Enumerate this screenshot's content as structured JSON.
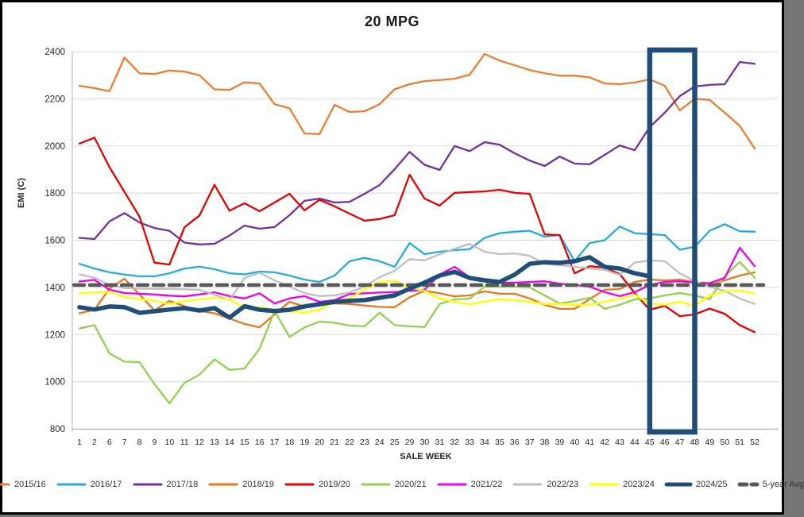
{
  "chart_data": {
    "type": "line",
    "title": "20 MPG",
    "xlabel": "SALE WEEK",
    "ylabel": "EMI (C)",
    "ylim": [
      800,
      2400
    ],
    "yticks": [
      800,
      1000,
      1200,
      1400,
      1600,
      1800,
      2000,
      2200,
      2400
    ],
    "grid": "horizontal-only",
    "legend_position": "bottom",
    "background": "#ffffff",
    "gridline_color": "#d9d9d9",
    "axis_line_color": "#bfbfbf",
    "tick_text_color": "#262626",
    "highlight_box": {
      "weeks": [
        46,
        47
      ],
      "color": "#1F4E79",
      "border_px": 6.5
    },
    "categories": [
      1,
      2,
      6,
      7,
      8,
      9,
      10,
      11,
      12,
      13,
      14,
      15,
      16,
      17,
      18,
      19,
      20,
      21,
      22,
      23,
      24,
      25,
      29,
      30,
      31,
      32,
      33,
      34,
      35,
      36,
      37,
      38,
      39,
      40,
      41,
      42,
      43,
      44,
      45,
      46,
      47,
      48,
      49,
      50,
      51,
      52
    ],
    "series": [
      {
        "name": "2015/16",
        "color": "#ED7D31",
        "width": 2.3,
        "values": [
          2255,
          2245,
          2232,
          2375,
          2308,
          2305,
          2320,
          2315,
          2300,
          2240,
          2238,
          2270,
          2265,
          2177,
          2160,
          2053,
          2050,
          2174,
          2144,
          2147,
          2177,
          2240,
          2262,
          2275,
          2279,
          2285,
          2302,
          2390,
          2362,
          2342,
          2322,
          2308,
          2298,
          2298,
          2291,
          2265,
          2262,
          2269,
          2282,
          2255,
          2150,
          2200,
          2195,
          2141,
          2085,
          1989
        ]
      },
      {
        "name": "2016/17",
        "color": "#27AAE1",
        "width": 2.3,
        "values": [
          1500,
          1480,
          1464,
          1454,
          1447,
          1447,
          1460,
          1480,
          1488,
          1477,
          1460,
          1455,
          1467,
          1464,
          1450,
          1433,
          1423,
          1450,
          1511,
          1525,
          1511,
          1487,
          1588,
          1541,
          1551,
          1558,
          1562,
          1610,
          1630,
          1636,
          1640,
          1615,
          1622,
          1511,
          1588,
          1600,
          1658,
          1630,
          1626,
          1622,
          1560,
          1572,
          1640,
          1668,
          1638,
          1636
        ]
      },
      {
        "name": "2017/18",
        "color": "#7030A0",
        "width": 2.3,
        "values": [
          1610,
          1605,
          1680,
          1715,
          1675,
          1652,
          1640,
          1590,
          1582,
          1585,
          1620,
          1662,
          1649,
          1656,
          1706,
          1767,
          1777,
          1760,
          1763,
          1797,
          1834,
          1901,
          1975,
          1920,
          1898,
          2000,
          1978,
          2016,
          2005,
          1969,
          1938,
          1915,
          1955,
          1925,
          1922,
          1962,
          2002,
          1982,
          2080,
          2141,
          2211,
          2252,
          2259,
          2262,
          2356,
          2348
        ]
      },
      {
        "name": "2018/19",
        "color": "#E8761B",
        "width": 2.3,
        "values": [
          1290,
          1305,
          1395,
          1437,
          1370,
          1302,
          1343,
          1320,
          1300,
          1290,
          1268,
          1245,
          1230,
          1285,
          1339,
          1319,
          1326,
          1332,
          1330,
          1323,
          1317,
          1316,
          1358,
          1385,
          1375,
          1362,
          1366,
          1383,
          1373,
          1373,
          1353,
          1326,
          1309,
          1309,
          1350,
          1390,
          1393,
          1423,
          1433,
          1430,
          1433,
          1423,
          1408,
          1430,
          1450,
          1464
        ]
      },
      {
        "name": "2019/20",
        "color": "#E60000",
        "width": 2.3,
        "values": [
          2010,
          2035,
          1910,
          1805,
          1700,
          1505,
          1497,
          1655,
          1705,
          1835,
          1725,
          1757,
          1723,
          1760,
          1797,
          1727,
          1771,
          1744,
          1713,
          1683,
          1690,
          1706,
          1878,
          1777,
          1747,
          1801,
          1804,
          1807,
          1814,
          1801,
          1797,
          1625,
          1622,
          1460,
          1490,
          1484,
          1457,
          1376,
          1305,
          1322,
          1278,
          1285,
          1310,
          1288,
          1240,
          1210
        ]
      },
      {
        "name": "2020/21",
        "color": "#92D050",
        "width": 2.3,
        "values": [
          1225,
          1240,
          1120,
          1085,
          1083,
          990,
          908,
          995,
          1030,
          1095,
          1050,
          1056,
          1140,
          1300,
          1190,
          1230,
          1255,
          1250,
          1238,
          1235,
          1293,
          1240,
          1235,
          1232,
          1330,
          1349,
          1352,
          1403,
          1403,
          1403,
          1400,
          1366,
          1332,
          1342,
          1356,
          1309,
          1326,
          1349,
          1353,
          1366,
          1376,
          1366,
          1350,
          1447,
          1508,
          1440
        ]
      },
      {
        "name": "2021/22",
        "color": "#EE00EE",
        "width": 2.3,
        "values": [
          1425,
          1432,
          1390,
          1376,
          1373,
          1370,
          1365,
          1362,
          1370,
          1379,
          1363,
          1353,
          1375,
          1332,
          1353,
          1363,
          1339,
          1346,
          1372,
          1375,
          1378,
          1380,
          1385,
          1390,
          1454,
          1487,
          1443,
          1433,
          1420,
          1420,
          1423,
          1426,
          1416,
          1410,
          1403,
          1380,
          1363,
          1380,
          1410,
          1423,
          1426,
          1420,
          1418,
          1440,
          1568,
          1490
        ]
      },
      {
        "name": "2022/23",
        "color": "#BFBFBF",
        "width": 2.3,
        "values": [
          1455,
          1441,
          1410,
          1397,
          1395,
          1394,
          1394,
          1392,
          1390,
          1369,
          1346,
          1440,
          1462,
          1430,
          1403,
          1376,
          1363,
          1366,
          1379,
          1403,
          1443,
          1470,
          1520,
          1515,
          1540,
          1564,
          1585,
          1551,
          1541,
          1544,
          1534,
          1500,
          1494,
          1487,
          1480,
          1474,
          1453,
          1505,
          1514,
          1511,
          1460,
          1427,
          1403,
          1385,
          1353,
          1330
        ]
      },
      {
        "name": "2023/24",
        "color": "#FFFF00",
        "width": 2.3,
        "values": [
          1375,
          1378,
          1380,
          1360,
          1350,
          1343,
          1330,
          1342,
          1349,
          1356,
          1349,
          1312,
          1316,
          1305,
          1298,
          1292,
          1305,
          1340,
          1353,
          1390,
          1423,
          1428,
          1400,
          1385,
          1353,
          1339,
          1328,
          1340,
          1349,
          1346,
          1339,
          1330,
          1330,
          1326,
          1326,
          1340,
          1352,
          1369,
          1332,
          1326,
          1339,
          1322,
          1366,
          1383,
          1387,
          1373
        ]
      },
      {
        "name": "2024/25",
        "color": "#1F4E79",
        "width": 5.5,
        "values": [
          1316,
          1306,
          1319,
          1316,
          1292,
          1299,
          1306,
          1312,
          1302,
          1312,
          1272,
          1320,
          1305,
          1300,
          1305,
          1319,
          1329,
          1339,
          1343,
          1346,
          1356,
          1366,
          1395,
          1420,
          1450,
          1466,
          1440,
          1430,
          1423,
          1454,
          1500,
          1507,
          1504,
          1511,
          1528,
          1487,
          1480,
          1460,
          1447,
          null,
          null,
          null,
          null,
          null,
          null,
          null
        ]
      },
      {
        "name": "5-year Avg",
        "color": "#595959",
        "width": 4.5,
        "dash": "13 7",
        "constant": 1410
      }
    ]
  }
}
